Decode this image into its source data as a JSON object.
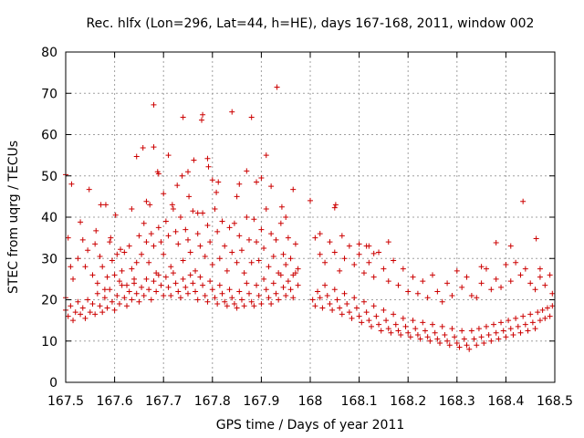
{
  "chart_data": {
    "type": "scatter",
    "title": "Rec. hlfx (Lon=296, Lat=44, h=HE), days 167-168, 2011, window 002",
    "xlabel": "GPS time / Days of year 2011",
    "ylabel": "STEC from uqrg / TECUs",
    "xlim": [
      167.5,
      168.5
    ],
    "ylim": [
      0,
      80
    ],
    "xticks": [
      167.5,
      167.6,
      167.7,
      167.8,
      167.9,
      168.0,
      168.1,
      168.2,
      168.3,
      168.4,
      168.5
    ],
    "xtick_labels": [
      "167.5",
      "167.6",
      "167.7",
      "167.8",
      "167.9",
      "168",
      "168.1",
      "168.2",
      "168.3",
      "168.4",
      "168.5"
    ],
    "yticks": [
      0,
      10,
      20,
      30,
      40,
      50,
      60,
      70,
      80
    ],
    "ytick_labels": [
      "0",
      "10",
      "20",
      "30",
      "40",
      "50",
      "60",
      "70",
      "80"
    ],
    "grid": true,
    "marker": "+",
    "color": "#cc0000",
    "points": [
      [
        167.5,
        50.3
      ],
      [
        167.512,
        48.0
      ],
      [
        167.53,
        38.8
      ],
      [
        167.548,
        46.7
      ],
      [
        167.562,
        36.7
      ],
      [
        167.572,
        43.0
      ],
      [
        167.582,
        43.0
      ],
      [
        167.592,
        35.0
      ],
      [
        167.602,
        40.5
      ],
      [
        167.612,
        32.2
      ],
      [
        167.635,
        42.0
      ],
      [
        167.645,
        54.7
      ],
      [
        167.658,
        56.8
      ],
      [
        167.665,
        43.8
      ],
      [
        167.672,
        43.0
      ],
      [
        167.68,
        57.0
      ],
      [
        167.68,
        67.2
      ],
      [
        167.688,
        51.0
      ],
      [
        167.69,
        50.5
      ],
      [
        167.7,
        45.7
      ],
      [
        167.71,
        55.0
      ],
      [
        167.718,
        43.0
      ],
      [
        167.728,
        47.7
      ],
      [
        167.738,
        50.0
      ],
      [
        167.74,
        64.2
      ],
      [
        167.75,
        51.0
      ],
      [
        167.752,
        45.0
      ],
      [
        167.762,
        53.8
      ],
      [
        167.77,
        41.0
      ],
      [
        167.778,
        63.5
      ],
      [
        167.78,
        64.8
      ],
      [
        167.79,
        54.2
      ],
      [
        167.792,
        52.2
      ],
      [
        167.8,
        49.0
      ],
      [
        167.808,
        46.0
      ],
      [
        167.812,
        48.5
      ],
      [
        167.84,
        65.5
      ],
      [
        167.85,
        45.0
      ],
      [
        167.855,
        48.0
      ],
      [
        167.87,
        51.2
      ],
      [
        167.88,
        64.2
      ],
      [
        167.89,
        48.5
      ],
      [
        167.9,
        49.5
      ],
      [
        167.91,
        55.0
      ],
      [
        167.92,
        47.5
      ],
      [
        167.932,
        71.5
      ],
      [
        167.942,
        42.5
      ],
      [
        167.95,
        40.0
      ],
      [
        167.965,
        46.7
      ],
      [
        168.0,
        44.0
      ],
      [
        168.02,
        36.0
      ],
      [
        168.05,
        42.3
      ],
      [
        168.052,
        43.0
      ],
      [
        168.1,
        33.5
      ],
      [
        168.12,
        33.0
      ],
      [
        168.13,
        31.2
      ],
      [
        168.16,
        34.0
      ],
      [
        168.35,
        28.0
      ],
      [
        168.38,
        33.8
      ],
      [
        168.41,
        33.0
      ],
      [
        168.435,
        43.8
      ],
      [
        168.462,
        34.8
      ],
      [
        168.47,
        27.5
      ],
      [
        167.5,
        20.5
      ],
      [
        167.505,
        35.0
      ],
      [
        167.51,
        28.0
      ],
      [
        167.515,
        25.0
      ],
      [
        167.525,
        30.0
      ],
      [
        167.535,
        34.5
      ],
      [
        167.54,
        28.0
      ],
      [
        167.545,
        32.0
      ],
      [
        167.555,
        26.0
      ],
      [
        167.56,
        33.5
      ],
      [
        167.565,
        24.0
      ],
      [
        167.57,
        30.5
      ],
      [
        167.575,
        28.0
      ],
      [
        167.58,
        22.5
      ],
      [
        167.585,
        25.5
      ],
      [
        167.59,
        34.0
      ],
      [
        167.595,
        29.5
      ],
      [
        167.6,
        26.0
      ],
      [
        167.605,
        31.0
      ],
      [
        167.61,
        24.5
      ],
      [
        167.615,
        27.0
      ],
      [
        167.62,
        31.5
      ],
      [
        167.625,
        23.5
      ],
      [
        167.63,
        33.0
      ],
      [
        167.635,
        27.5
      ],
      [
        167.64,
        25.0
      ],
      [
        167.645,
        29.0
      ],
      [
        167.65,
        35.5
      ],
      [
        167.655,
        31.0
      ],
      [
        167.66,
        38.5
      ],
      [
        167.665,
        34.0
      ],
      [
        167.67,
        29.0
      ],
      [
        167.675,
        36.0
      ],
      [
        167.68,
        33.0
      ],
      [
        167.685,
        26.5
      ],
      [
        167.69,
        37.5
      ],
      [
        167.695,
        34.0
      ],
      [
        167.7,
        31.0
      ],
      [
        167.705,
        39.0
      ],
      [
        167.71,
        35.5
      ],
      [
        167.715,
        28.0
      ],
      [
        167.72,
        42.0
      ],
      [
        167.725,
        36.5
      ],
      [
        167.73,
        33.5
      ],
      [
        167.735,
        40.0
      ],
      [
        167.74,
        29.5
      ],
      [
        167.745,
        37.0
      ],
      [
        167.75,
        34.5
      ],
      [
        167.755,
        31.5
      ],
      [
        167.76,
        41.5
      ],
      [
        167.765,
        27.0
      ],
      [
        167.77,
        36.0
      ],
      [
        167.775,
        33.0
      ],
      [
        167.78,
        41.0
      ],
      [
        167.785,
        30.5
      ],
      [
        167.79,
        38.0
      ],
      [
        167.795,
        34.0
      ],
      [
        167.8,
        28.5
      ],
      [
        167.805,
        42.0
      ],
      [
        167.81,
        36.5
      ],
      [
        167.815,
        30.0
      ],
      [
        167.82,
        39.0
      ],
      [
        167.825,
        33.0
      ],
      [
        167.83,
        27.0
      ],
      [
        167.835,
        37.5
      ],
      [
        167.84,
        31.5
      ],
      [
        167.845,
        38.5
      ],
      [
        167.85,
        29.0
      ],
      [
        167.855,
        35.5
      ],
      [
        167.86,
        32.0
      ],
      [
        167.865,
        26.5
      ],
      [
        167.87,
        40.0
      ],
      [
        167.875,
        34.5
      ],
      [
        167.88,
        29.0
      ],
      [
        167.885,
        39.5
      ],
      [
        167.89,
        34.0
      ],
      [
        167.895,
        29.5
      ],
      [
        167.9,
        37.0
      ],
      [
        167.905,
        32.5
      ],
      [
        167.91,
        42.0
      ],
      [
        167.915,
        28.0
      ],
      [
        167.92,
        36.0
      ],
      [
        167.925,
        30.5
      ],
      [
        167.93,
        34.5
      ],
      [
        167.935,
        26.5
      ],
      [
        167.94,
        38.5
      ],
      [
        167.945,
        31.0
      ],
      [
        167.95,
        28.5
      ],
      [
        167.955,
        35.0
      ],
      [
        167.96,
        30.0
      ],
      [
        167.965,
        26.0
      ],
      [
        167.97,
        33.5
      ],
      [
        167.975,
        27.5
      ],
      [
        168.01,
        35.0
      ],
      [
        168.02,
        31.0
      ],
      [
        168.03,
        29.0
      ],
      [
        168.04,
        34.0
      ],
      [
        168.05,
        31.5
      ],
      [
        168.06,
        27.0
      ],
      [
        168.065,
        35.5
      ],
      [
        168.07,
        30.0
      ],
      [
        168.08,
        33.0
      ],
      [
        168.09,
        28.5
      ],
      [
        168.1,
        31.0
      ],
      [
        168.11,
        26.5
      ],
      [
        168.115,
        33.0
      ],
      [
        168.12,
        29.0
      ],
      [
        168.13,
        25.5
      ],
      [
        168.14,
        31.5
      ],
      [
        168.15,
        27.5
      ],
      [
        168.16,
        24.5
      ],
      [
        168.17,
        29.5
      ],
      [
        168.18,
        23.5
      ],
      [
        168.19,
        27.5
      ],
      [
        168.2,
        22.0
      ],
      [
        168.21,
        25.5
      ],
      [
        168.22,
        21.5
      ],
      [
        168.23,
        24.5
      ],
      [
        168.24,
        20.5
      ],
      [
        168.25,
        26.0
      ],
      [
        168.26,
        22.0
      ],
      [
        168.27,
        19.5
      ],
      [
        168.28,
        24.0
      ],
      [
        168.29,
        21.0
      ],
      [
        168.3,
        27.0
      ],
      [
        168.31,
        23.0
      ],
      [
        168.32,
        25.5
      ],
      [
        168.33,
        21.0
      ],
      [
        168.34,
        20.5
      ],
      [
        168.35,
        24.0
      ],
      [
        168.36,
        27.5
      ],
      [
        168.37,
        22.5
      ],
      [
        168.38,
        25.0
      ],
      [
        168.39,
        23.0
      ],
      [
        168.4,
        28.5
      ],
      [
        168.41,
        24.5
      ],
      [
        168.42,
        29.0
      ],
      [
        168.43,
        26.0
      ],
      [
        168.44,
        27.5
      ],
      [
        168.45,
        24.0
      ],
      [
        168.46,
        22.5
      ],
      [
        168.47,
        25.5
      ],
      [
        168.48,
        23.5
      ],
      [
        168.49,
        26.0
      ],
      [
        168.495,
        21.5
      ],
      [
        167.5,
        17.5
      ],
      [
        167.505,
        16.0
      ],
      [
        167.51,
        18.5
      ],
      [
        167.515,
        15.0
      ],
      [
        167.52,
        17.0
      ],
      [
        167.525,
        19.5
      ],
      [
        167.53,
        16.5
      ],
      [
        167.535,
        18.0
      ],
      [
        167.54,
        15.5
      ],
      [
        167.545,
        20.0
      ],
      [
        167.55,
        17.0
      ],
      [
        167.555,
        19.0
      ],
      [
        167.56,
        16.5
      ],
      [
        167.565,
        21.5
      ],
      [
        167.57,
        18.5
      ],
      [
        167.575,
        17.0
      ],
      [
        167.58,
        20.5
      ],
      [
        167.585,
        18.0
      ],
      [
        167.59,
        22.5
      ],
      [
        167.595,
        19.5
      ],
      [
        167.6,
        17.5
      ],
      [
        167.605,
        21.0
      ],
      [
        167.61,
        19.0
      ],
      [
        167.615,
        23.5
      ],
      [
        167.62,
        20.5
      ],
      [
        167.625,
        18.5
      ],
      [
        167.63,
        22.0
      ],
      [
        167.635,
        20.0
      ],
      [
        167.64,
        24.0
      ],
      [
        167.645,
        21.5
      ],
      [
        167.65,
        19.5
      ],
      [
        167.655,
        23.0
      ],
      [
        167.66,
        21.0
      ],
      [
        167.665,
        25.0
      ],
      [
        167.67,
        22.5
      ],
      [
        167.675,
        20.0
      ],
      [
        167.68,
        24.5
      ],
      [
        167.685,
        22.0
      ],
      [
        167.69,
        26.0
      ],
      [
        167.695,
        23.5
      ],
      [
        167.7,
        21.0
      ],
      [
        167.705,
        25.5
      ],
      [
        167.71,
        23.0
      ],
      [
        167.715,
        21.0
      ],
      [
        167.72,
        26.5
      ],
      [
        167.725,
        24.0
      ],
      [
        167.73,
        22.0
      ],
      [
        167.735,
        20.5
      ],
      [
        167.74,
        25.0
      ],
      [
        167.745,
        23.0
      ],
      [
        167.75,
        21.5
      ],
      [
        167.755,
        26.0
      ],
      [
        167.76,
        24.0
      ],
      [
        167.765,
        22.0
      ],
      [
        167.77,
        20.0
      ],
      [
        167.775,
        25.5
      ],
      [
        167.78,
        23.5
      ],
      [
        167.785,
        21.0
      ],
      [
        167.79,
        19.5
      ],
      [
        167.795,
        24.5
      ],
      [
        167.8,
        22.5
      ],
      [
        167.805,
        20.5
      ],
      [
        167.81,
        19.0
      ],
      [
        167.815,
        23.5
      ],
      [
        167.82,
        21.5
      ],
      [
        167.825,
        19.5
      ],
      [
        167.83,
        18.5
      ],
      [
        167.835,
        22.5
      ],
      [
        167.84,
        20.5
      ],
      [
        167.845,
        19.0
      ],
      [
        167.85,
        18.0
      ],
      [
        167.855,
        22.0
      ],
      [
        167.86,
        20.0
      ],
      [
        167.865,
        18.5
      ],
      [
        167.87,
        24.0
      ],
      [
        167.875,
        21.5
      ],
      [
        167.88,
        19.5
      ],
      [
        167.885,
        18.5
      ],
      [
        167.89,
        23.5
      ],
      [
        167.895,
        21.0
      ],
      [
        167.9,
        19.0
      ],
      [
        167.905,
        25.0
      ],
      [
        167.91,
        22.5
      ],
      [
        167.915,
        20.5
      ],
      [
        167.92,
        19.0
      ],
      [
        167.925,
        24.0
      ],
      [
        167.93,
        21.5
      ],
      [
        167.935,
        20.0
      ],
      [
        167.94,
        26.0
      ],
      [
        167.945,
        23.0
      ],
      [
        167.95,
        21.0
      ],
      [
        167.955,
        24.5
      ],
      [
        167.96,
        22.5
      ],
      [
        167.965,
        20.5
      ],
      [
        167.97,
        26.5
      ],
      [
        167.975,
        23.5
      ],
      [
        168.005,
        20.0
      ],
      [
        168.01,
        18.5
      ],
      [
        168.015,
        22.0
      ],
      [
        168.02,
        20.5
      ],
      [
        168.025,
        18.0
      ],
      [
        168.03,
        23.5
      ],
      [
        168.035,
        21.0
      ],
      [
        168.04,
        19.0
      ],
      [
        168.045,
        17.5
      ],
      [
        168.05,
        22.5
      ],
      [
        168.055,
        20.0
      ],
      [
        168.06,
        18.0
      ],
      [
        168.065,
        16.5
      ],
      [
        168.07,
        21.5
      ],
      [
        168.075,
        19.0
      ],
      [
        168.08,
        17.0
      ],
      [
        168.085,
        15.5
      ],
      [
        168.09,
        20.5
      ],
      [
        168.095,
        18.0
      ],
      [
        168.1,
        16.0
      ],
      [
        168.105,
        14.5
      ],
      [
        168.11,
        19.5
      ],
      [
        168.115,
        17.0
      ],
      [
        168.12,
        15.0
      ],
      [
        168.125,
        13.5
      ],
      [
        168.13,
        18.5
      ],
      [
        168.135,
        16.0
      ],
      [
        168.14,
        14.0
      ],
      [
        168.145,
        12.5
      ],
      [
        168.15,
        17.5
      ],
      [
        168.155,
        15.0
      ],
      [
        168.16,
        13.0
      ],
      [
        168.165,
        12.0
      ],
      [
        168.17,
        16.5
      ],
      [
        168.175,
        14.0
      ],
      [
        168.18,
        12.5
      ],
      [
        168.185,
        11.5
      ],
      [
        168.19,
        15.5
      ],
      [
        168.195,
        13.5
      ],
      [
        168.2,
        12.0
      ],
      [
        168.205,
        11.0
      ],
      [
        168.21,
        15.0
      ],
      [
        168.215,
        13.0
      ],
      [
        168.22,
        11.5
      ],
      [
        168.225,
        10.5
      ],
      [
        168.23,
        14.5
      ],
      [
        168.235,
        12.5
      ],
      [
        168.24,
        11.0
      ],
      [
        168.245,
        10.0
      ],
      [
        168.25,
        14.0
      ],
      [
        168.255,
        12.0
      ],
      [
        168.26,
        10.5
      ],
      [
        168.265,
        9.5
      ],
      [
        168.27,
        13.5
      ],
      [
        168.275,
        11.5
      ],
      [
        168.28,
        10.0
      ],
      [
        168.285,
        9.0
      ],
      [
        168.29,
        13.0
      ],
      [
        168.295,
        11.0
      ],
      [
        168.3,
        9.5
      ],
      [
        168.305,
        8.5
      ],
      [
        168.31,
        12.5
      ],
      [
        168.315,
        10.5
      ],
      [
        168.32,
        9.0
      ],
      [
        168.325,
        8.0
      ],
      [
        168.33,
        12.5
      ],
      [
        168.335,
        10.5
      ],
      [
        168.34,
        9.0
      ],
      [
        168.345,
        13.0
      ],
      [
        168.35,
        11.0
      ],
      [
        168.355,
        9.5
      ],
      [
        168.36,
        13.5
      ],
      [
        168.365,
        11.5
      ],
      [
        168.37,
        10.0
      ],
      [
        168.375,
        14.0
      ],
      [
        168.38,
        12.0
      ],
      [
        168.385,
        10.5
      ],
      [
        168.39,
        14.5
      ],
      [
        168.395,
        12.5
      ],
      [
        168.4,
        11.0
      ],
      [
        168.405,
        15.0
      ],
      [
        168.41,
        13.0
      ],
      [
        168.415,
        11.5
      ],
      [
        168.42,
        15.5
      ],
      [
        168.425,
        13.5
      ],
      [
        168.43,
        12.0
      ],
      [
        168.435,
        16.0
      ],
      [
        168.44,
        14.0
      ],
      [
        168.445,
        12.5
      ],
      [
        168.45,
        16.5
      ],
      [
        168.455,
        14.5
      ],
      [
        168.46,
        13.0
      ],
      [
        168.465,
        17.0
      ],
      [
        168.47,
        15.0
      ],
      [
        168.475,
        17.5
      ],
      [
        168.48,
        15.5
      ],
      [
        168.485,
        18.0
      ],
      [
        168.49,
        16.0
      ],
      [
        168.495,
        18.5
      ]
    ]
  }
}
